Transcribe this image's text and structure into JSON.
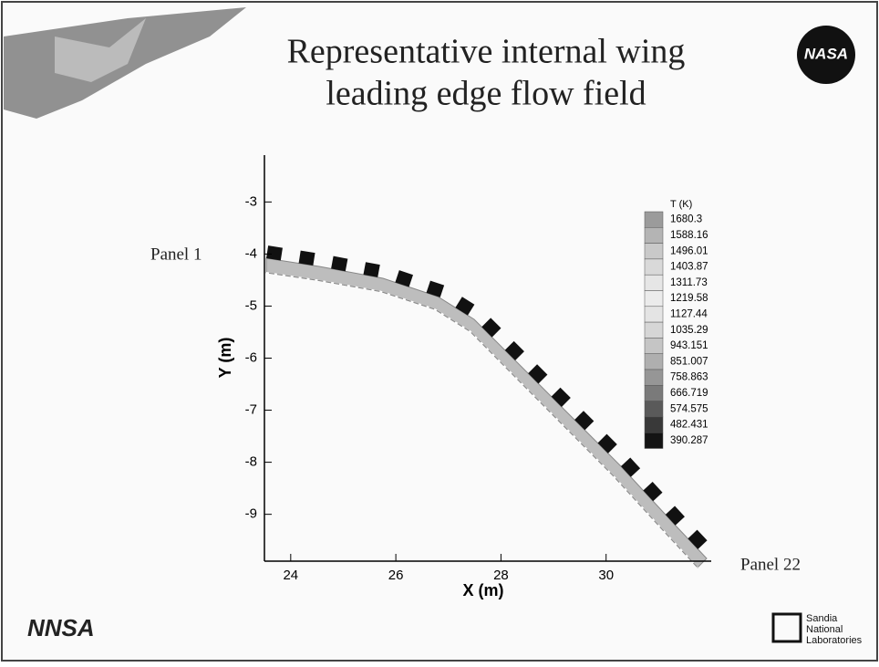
{
  "title": [
    "Representative internal wing",
    "leading edge flow field"
  ],
  "plot": {
    "xlabel": "X (m)",
    "ylabel": "Y (m)",
    "xlim": [
      23.5,
      32
    ],
    "ylim": [
      -9.9,
      -2.1
    ],
    "xticks": [
      24,
      26,
      28,
      30
    ],
    "yticks": [
      -3,
      -4,
      -5,
      -6,
      -7,
      -8,
      -9
    ],
    "colorbar": {
      "title": "T (K)",
      "levels": [
        1680.3,
        1588.16,
        1496.01,
        1403.87,
        1311.73,
        1219.58,
        1127.44,
        1035.29,
        943.151,
        851.007,
        758.863,
        666.719,
        574.575,
        482.431,
        390.287
      ]
    },
    "annotations": [
      "Panel 1",
      "Panel 22"
    ]
  },
  "logos": {
    "nasa": "NASA",
    "nnsa": "NNSA",
    "sandia": [
      "Sandia",
      "National",
      "Laboratories"
    ]
  }
}
